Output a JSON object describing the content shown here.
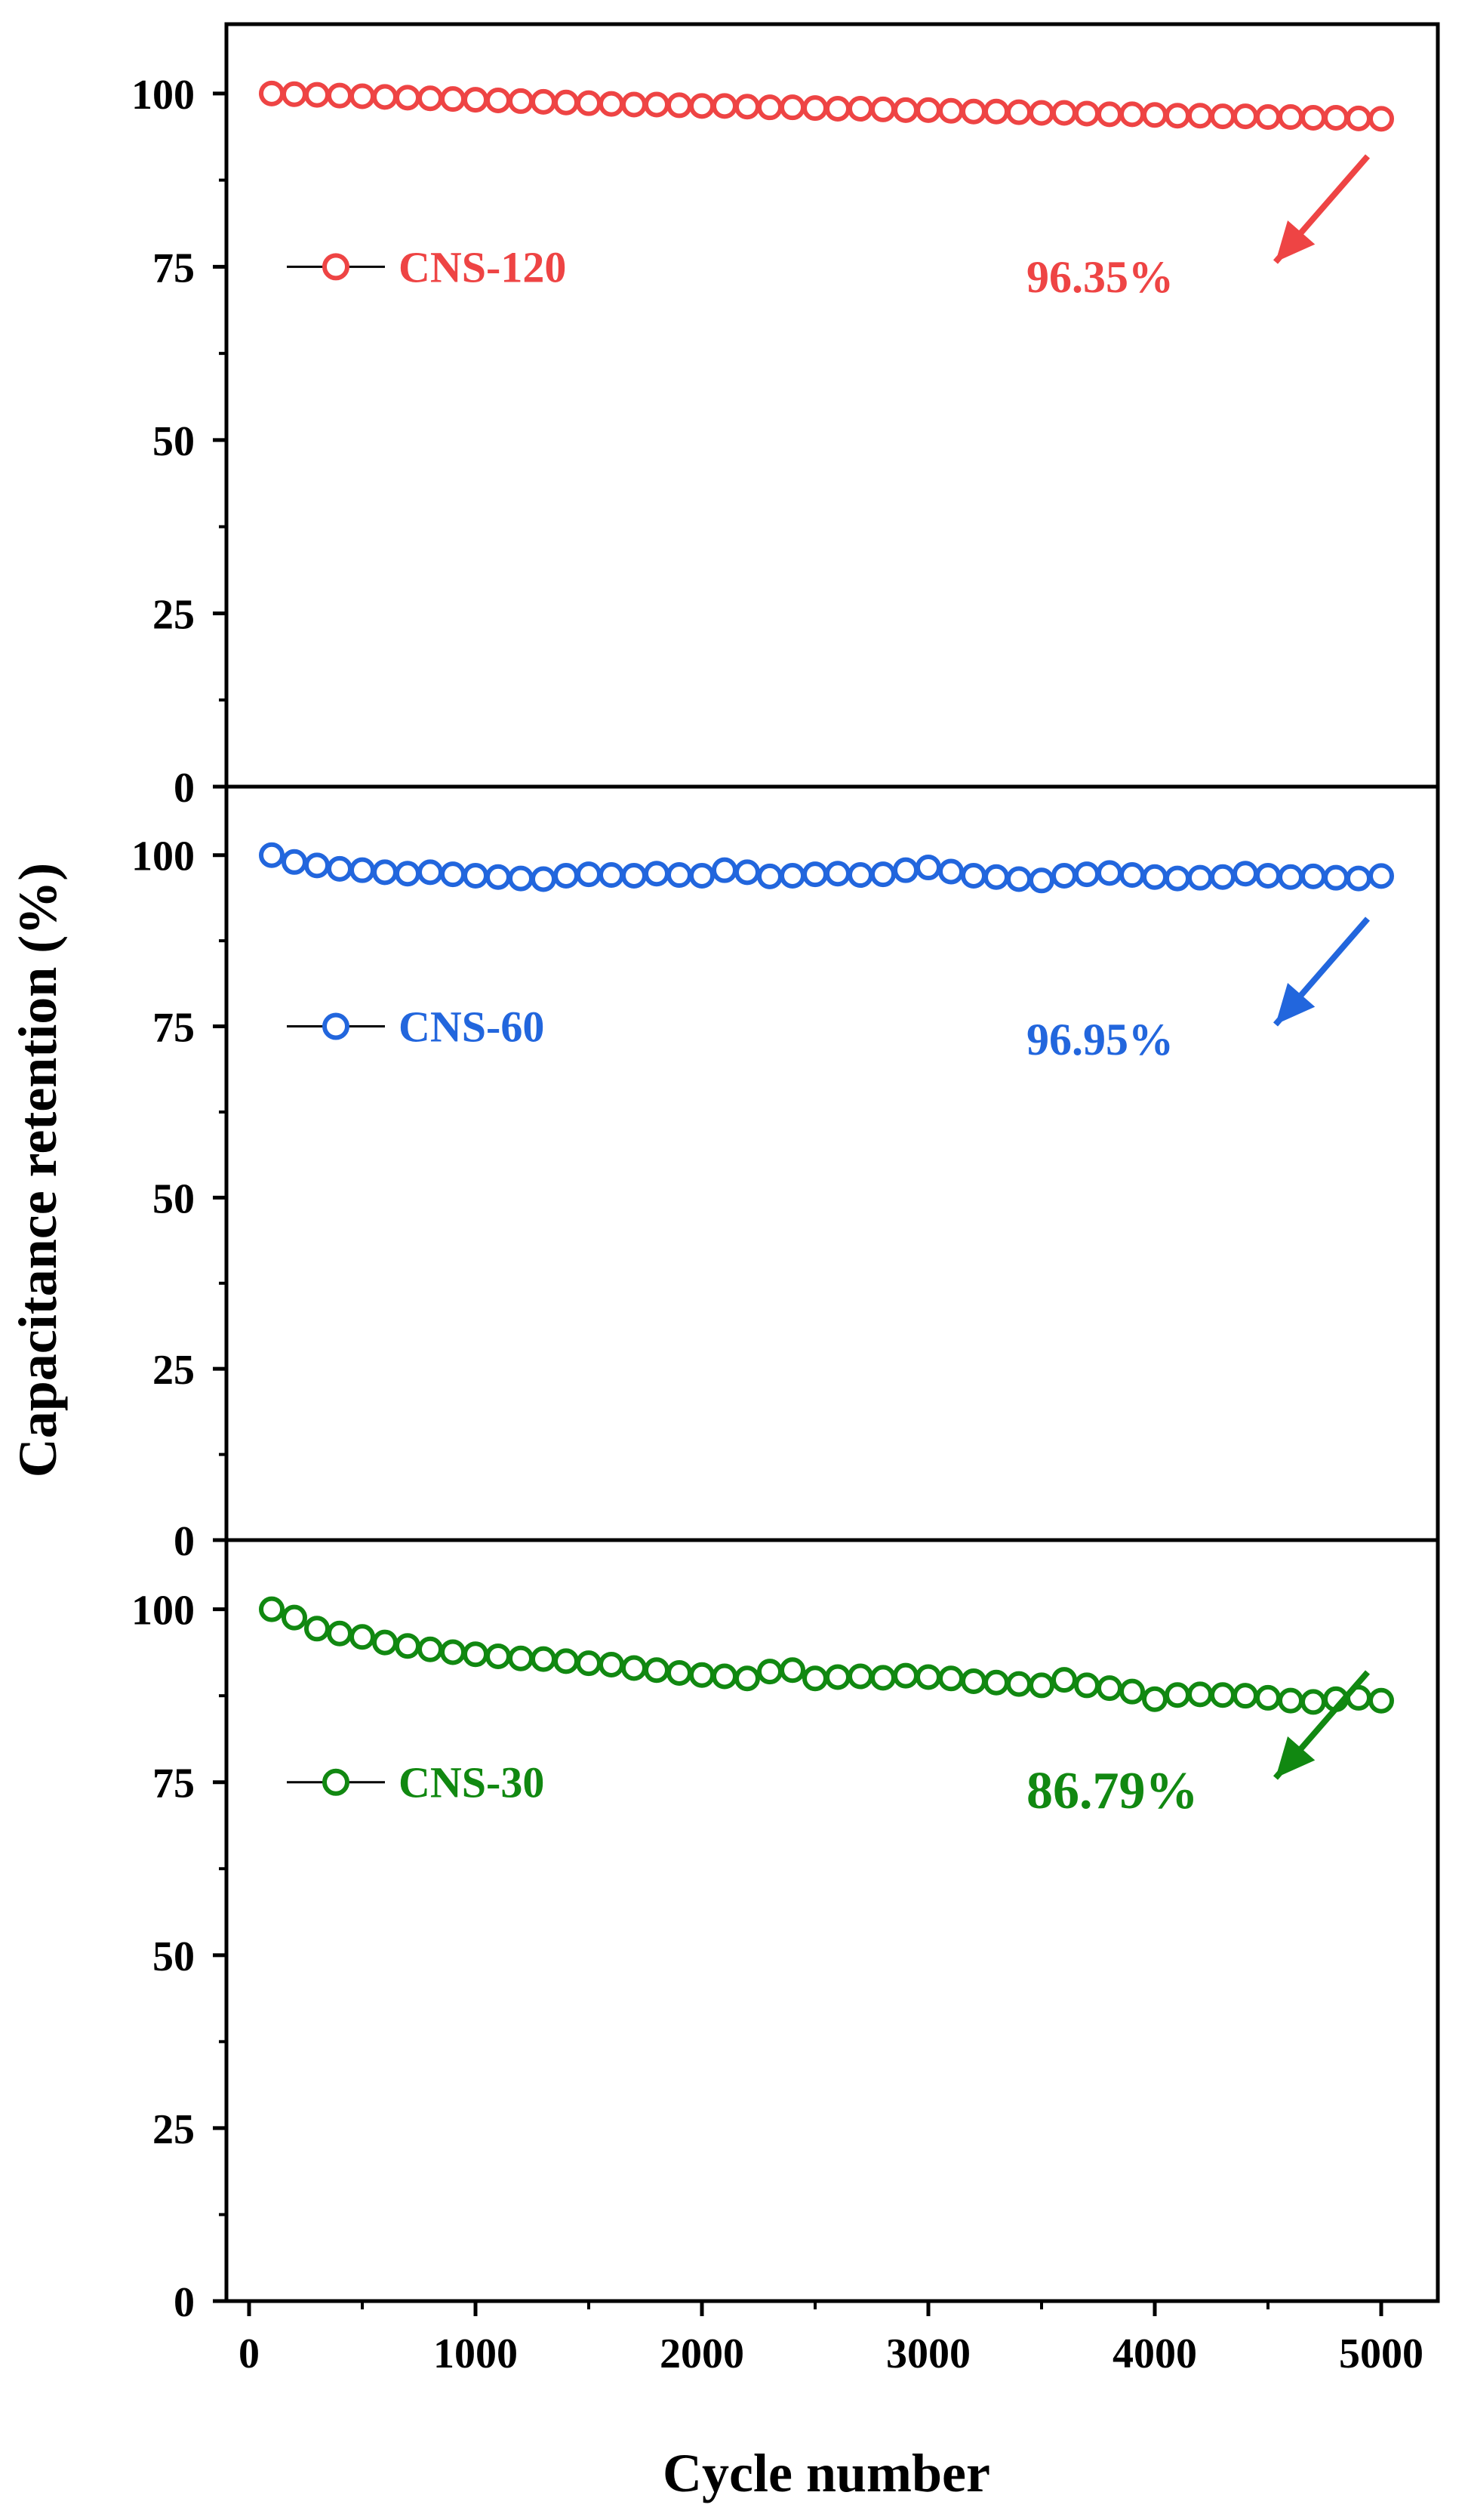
{
  "chart_data": {
    "type": "scatter",
    "xlabel": "Cycle number",
    "ylabel": "Capacitance retention (%)",
    "xlim": [
      -100,
      5250
    ],
    "ylim": [
      0,
      110
    ],
    "xticks": [
      0,
      1000,
      2000,
      3000,
      4000,
      5000
    ],
    "yticks": [
      0,
      25,
      50,
      75,
      100
    ],
    "x": [
      100,
      200,
      300,
      400,
      500,
      600,
      700,
      800,
      900,
      1000,
      1100,
      1200,
      1300,
      1400,
      1500,
      1600,
      1700,
      1800,
      1900,
      2000,
      2100,
      2200,
      2300,
      2400,
      2500,
      2600,
      2700,
      2800,
      2900,
      3000,
      3100,
      3200,
      3300,
      3400,
      3500,
      3600,
      3700,
      3800,
      3900,
      4000,
      4100,
      4200,
      4300,
      4400,
      4500,
      4600,
      4700,
      4800,
      4900,
      5000
    ],
    "series": [
      {
        "name": "CNS-120",
        "color": "#ee4444",
        "legend": "CNS-120",
        "annotation": "96.35%",
        "values": [
          100.0,
          99.9,
          99.8,
          99.7,
          99.6,
          99.5,
          99.4,
          99.3,
          99.2,
          99.1,
          99.0,
          98.9,
          98.8,
          98.7,
          98.6,
          98.5,
          98.4,
          98.4,
          98.3,
          98.2,
          98.2,
          98.1,
          98.0,
          98.0,
          97.9,
          97.8,
          97.8,
          97.7,
          97.6,
          97.6,
          97.5,
          97.4,
          97.4,
          97.3,
          97.2,
          97.2,
          97.1,
          97.0,
          97.0,
          96.9,
          96.8,
          96.8,
          96.7,
          96.7,
          96.6,
          96.6,
          96.5,
          96.5,
          96.4,
          96.35
        ]
      },
      {
        "name": "CNS-60",
        "color": "#2266dd",
        "legend": "CNS-60",
        "annotation": "96.95%",
        "values": [
          100.0,
          99.0,
          98.5,
          98.0,
          97.8,
          97.5,
          97.3,
          97.5,
          97.2,
          97.0,
          96.8,
          96.6,
          96.5,
          97.0,
          97.2,
          97.1,
          97.0,
          97.3,
          97.1,
          97.0,
          97.8,
          97.5,
          96.9,
          97.0,
          97.2,
          97.3,
          97.1,
          97.2,
          97.8,
          98.2,
          97.6,
          97.0,
          96.8,
          96.5,
          96.3,
          97.0,
          97.2,
          97.4,
          97.1,
          96.8,
          96.6,
          96.7,
          96.8,
          97.3,
          97.0,
          96.8,
          96.9,
          96.7,
          96.6,
          96.95
        ]
      },
      {
        "name": "CNS-30",
        "color": "#118811",
        "legend": "CNS-30",
        "annotation": "86.79%",
        "values": [
          100.0,
          98.8,
          97.2,
          96.5,
          96.0,
          95.2,
          94.7,
          94.2,
          93.8,
          93.5,
          93.2,
          92.9,
          92.8,
          92.5,
          92.2,
          92.0,
          91.5,
          91.2,
          90.8,
          90.5,
          90.3,
          90.0,
          91.0,
          91.2,
          90.0,
          90.2,
          90.3,
          90.1,
          90.4,
          90.2,
          90.0,
          89.6,
          89.4,
          89.2,
          89.0,
          89.8,
          89.0,
          88.6,
          88.1,
          87.0,
          87.6,
          87.7,
          87.6,
          87.5,
          87.2,
          86.8,
          86.6,
          87.0,
          87.2,
          86.79
        ]
      }
    ]
  }
}
